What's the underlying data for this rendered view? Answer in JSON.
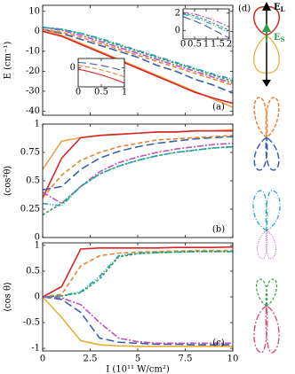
{
  "chart_data": [
    {
      "type": "line",
      "label": "(a)",
      "ylabel": "E (cm⁻¹)",
      "x": [
        0,
        1,
        2,
        3,
        4,
        5,
        6,
        7,
        8,
        9,
        10
      ],
      "xlim": [
        0,
        10
      ],
      "xticks": [
        0,
        2.5,
        5,
        7.5,
        10
      ],
      "ylim": [
        -42,
        13
      ],
      "yticks": [
        -40,
        -30,
        -20,
        -10,
        0,
        10
      ],
      "series": [
        {
          "color": "#f0a040",
          "values": [
            1,
            -2,
            -6,
            -10,
            -14,
            -18,
            -22,
            -26,
            -30,
            -34,
            -38
          ]
        },
        {
          "color": "#d62728",
          "values": [
            0,
            -2.5,
            -6.5,
            -10.5,
            -14.5,
            -18.5,
            -22.5,
            -26.5,
            -30.5,
            -33.5,
            -36
          ]
        },
        {
          "color": "#3a5fb0",
          "dash": "9 4",
          "values": [
            1,
            -1,
            -4,
            -7,
            -10,
            -13,
            -17,
            -20,
            -24,
            -27,
            -31
          ]
        },
        {
          "color": "#f08030",
          "dash": "5 3",
          "values": [
            1,
            -0.5,
            -3,
            -6,
            -9,
            -12,
            -15,
            -18,
            -21,
            -24,
            -27
          ]
        },
        {
          "color": "#c050c0",
          "dash": "7 2 2 2",
          "values": [
            2,
            0.5,
            -2,
            -5,
            -8,
            -11,
            -14,
            -17,
            -20,
            -23,
            -26
          ]
        },
        {
          "color": "#2a9d4a",
          "dash": "3 2",
          "values": [
            2,
            1,
            -1,
            -4,
            -7,
            -10,
            -13,
            -16,
            -19,
            -22,
            -25
          ]
        },
        {
          "color": "#1ea0c0",
          "dash": "6 2 1 2 1 2",
          "values": [
            2,
            1,
            -1,
            -3.5,
            -6.5,
            -9.5,
            -12.5,
            -15.5,
            -18.5,
            -21.5,
            -24
          ]
        }
      ],
      "insets": [
        {
          "type": "line",
          "x": [
            0,
            0.25,
            0.5,
            0.75,
            1
          ],
          "xlim": [
            0,
            1
          ],
          "xticks": [
            0,
            0.5,
            1
          ],
          "ylim": [
            -3,
            1.5
          ],
          "yticks": [
            0
          ],
          "series": [
            {
              "color": "#d62728",
              "values": [
                -0.2,
                -0.6,
                -1.1,
                -1.7,
                -2.4
              ]
            },
            {
              "color": "#f08030",
              "dash": "5 3",
              "values": [
                0.4,
                0.1,
                -0.3,
                -0.8,
                -1.4
              ]
            },
            {
              "color": "#3a5fb0",
              "dash": "9 4",
              "values": [
                0.9,
                0.7,
                0.4,
                0,
                -0.5
              ]
            }
          ]
        },
        {
          "type": "line",
          "x": [
            0,
            0.5,
            1,
            1.5,
            2
          ],
          "xlim": [
            0,
            2
          ],
          "xticks": [
            0,
            0.5,
            1,
            1.5,
            2
          ],
          "ylim": [
            -1,
            2.5
          ],
          "yticks": [
            0,
            2
          ],
          "series": [
            {
              "color": "#c050c0",
              "dash": "7 2 2 2",
              "values": [
                2.1,
                1.9,
                1.5,
                1,
                0.4
              ]
            },
            {
              "color": "#2a9d4a",
              "dash": "3 2",
              "values": [
                2,
                1.7,
                1.2,
                0.6,
                0
              ]
            },
            {
              "color": "#1ea0c0",
              "dash": "6 2 1 2 1 2",
              "values": [
                1.9,
                1.5,
                1,
                0.4,
                -0.3
              ]
            },
            {
              "color": "#3a5fb0",
              "dash": "9 4",
              "values": [
                1.6,
                1.1,
                0.5,
                -0.2,
                -0.9
              ]
            }
          ]
        }
      ]
    },
    {
      "type": "line",
      "label": "(b)",
      "ylabel": "⟨cos²θ⟩",
      "x": [
        0,
        1,
        2,
        3,
        4,
        5,
        6,
        7,
        8,
        9,
        10
      ],
      "xlim": [
        0,
        10
      ],
      "xticks": [
        0,
        2.5,
        5,
        7.5,
        10
      ],
      "ylim": [
        0,
        1
      ],
      "yticks": [
        0,
        0.25,
        0.5,
        0.75,
        1
      ],
      "series": [
        {
          "color": "#f0a040",
          "values": [
            0.6,
            0.85,
            0.88,
            0.9,
            0.91,
            0.92,
            0.93,
            0.93,
            0.94,
            0.94,
            0.95
          ]
        },
        {
          "color": "#d62728",
          "values": [
            0.35,
            0.7,
            0.88,
            0.9,
            0.91,
            0.92,
            0.93,
            0.93,
            0.94,
            0.94,
            0.94
          ]
        },
        {
          "color": "#3a5fb0",
          "dash": "9 4",
          "values": [
            0.42,
            0.45,
            0.6,
            0.7,
            0.76,
            0.8,
            0.83,
            0.85,
            0.87,
            0.88,
            0.89
          ]
        },
        {
          "color": "#f08030",
          "dash": "5 3",
          "values": [
            0.35,
            0.55,
            0.68,
            0.75,
            0.8,
            0.83,
            0.86,
            0.87,
            0.88,
            0.89,
            0.9
          ]
        },
        {
          "color": "#c050c0",
          "dash": "7 2 2 2",
          "values": [
            0.4,
            0.3,
            0.45,
            0.58,
            0.66,
            0.71,
            0.75,
            0.78,
            0.8,
            0.82,
            0.83
          ]
        },
        {
          "color": "#2a9d4a",
          "dash": "3 2",
          "values": [
            0.2,
            0.3,
            0.45,
            0.56,
            0.63,
            0.68,
            0.72,
            0.75,
            0.77,
            0.79,
            0.8
          ]
        },
        {
          "color": "#1ea0c0",
          "dash": "6 2 1 2 1 2",
          "values": [
            0.3,
            0.28,
            0.45,
            0.56,
            0.63,
            0.68,
            0.72,
            0.75,
            0.77,
            0.79,
            0.8
          ]
        }
      ]
    },
    {
      "type": "line",
      "label": "(c)",
      "ylabel": "⟨cos θ⟩",
      "xlabel": "I (10¹¹ W/cm²)",
      "x": [
        0,
        1,
        2,
        3,
        4,
        5,
        6,
        7,
        8,
        9,
        10
      ],
      "xlim": [
        0,
        10
      ],
      "xticks": [
        0,
        2.5,
        5,
        7.5,
        10
      ],
      "ylim": [
        -1.05,
        1.05
      ],
      "yticks": [
        -1,
        -0.5,
        0,
        0.5,
        1
      ],
      "series": [
        {
          "color": "#d62728",
          "values": [
            0,
            0.2,
            0.93,
            0.95,
            0.95,
            0.95,
            0.95,
            0.96,
            0.96,
            0.96,
            0.97
          ]
        },
        {
          "color": "#f08030",
          "dash": "5 3",
          "values": [
            0,
            0.05,
            0.6,
            0.8,
            0.85,
            0.87,
            0.88,
            0.89,
            0.9,
            0.9,
            0.9
          ]
        },
        {
          "color": "#1ea0c0",
          "dash": "6 2 1 2 1 2",
          "values": [
            0,
            0.02,
            0.1,
            0.4,
            0.8,
            0.85,
            0.86,
            0.87,
            0.88,
            0.88,
            0.88
          ]
        },
        {
          "color": "#2a9d4a",
          "dash": "3 2",
          "values": [
            0,
            0.02,
            0.08,
            0.35,
            0.78,
            0.84,
            0.86,
            0.87,
            0.88,
            0.88,
            0.88
          ]
        },
        {
          "color": "#e8b030",
          "values": [
            0,
            -0.4,
            -0.85,
            -0.93,
            -0.95,
            -0.96,
            -0.96,
            -0.96,
            -0.96,
            -0.96,
            -0.96
          ]
        },
        {
          "color": "#3a5fb0",
          "dash": "9 4",
          "values": [
            0,
            -0.05,
            -0.3,
            -0.8,
            -0.88,
            -0.9,
            -0.92,
            -0.92,
            -0.93,
            -0.93,
            -0.93
          ]
        },
        {
          "color": "#c050c0",
          "dash": "7 2 2 2",
          "values": [
            0,
            -0.02,
            -0.15,
            -0.5,
            -0.8,
            -0.87,
            -0.9,
            -0.9,
            -0.9,
            -0.9,
            -0.9
          ]
        }
      ]
    }
  ],
  "diagram": {
    "label": "(d)",
    "field_l": {
      "symbol": "E",
      "subscript": "L"
    },
    "field_s": {
      "symbol": "E",
      "subscript": "S"
    }
  }
}
